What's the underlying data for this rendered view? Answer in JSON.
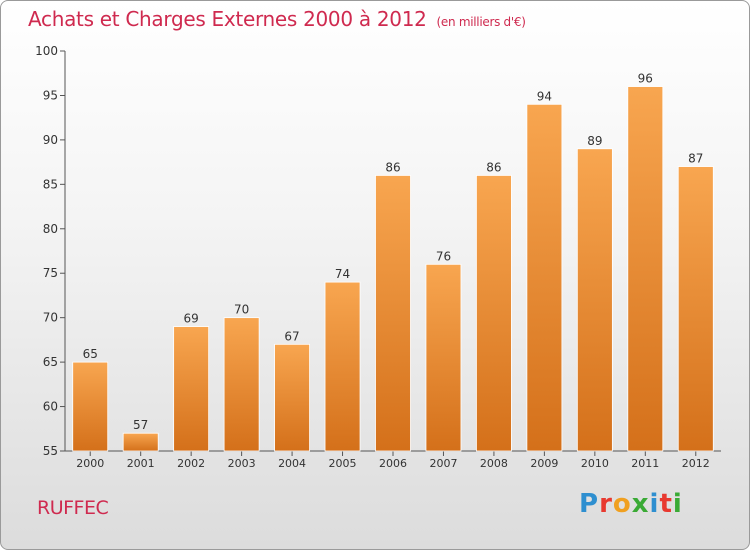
{
  "header": {
    "title": "Achats et Charges Externes 2000 à 2012",
    "unit": "(en milliers d'€)"
  },
  "footer": {
    "city": "RUFFEC",
    "logo": {
      "letters": [
        "P",
        "r",
        "o",
        "x",
        "i",
        "t",
        "i"
      ],
      "colors": [
        "#2e8fd0",
        "#e8392f",
        "#f0a020",
        "#3aaa35",
        "#2e8fd0",
        "#e8392f",
        "#3aaa35"
      ]
    }
  },
  "chart_data": {
    "type": "bar",
    "categories": [
      "2000",
      "2001",
      "2002",
      "2003",
      "2004",
      "2005",
      "2006",
      "2007",
      "2008",
      "2009",
      "2010",
      "2011",
      "2012"
    ],
    "values": [
      65,
      57,
      69,
      70,
      67,
      74,
      86,
      76,
      86,
      94,
      89,
      96,
      87
    ],
    "ylim": [
      55,
      100
    ],
    "yticks": [
      55,
      60,
      65,
      70,
      75,
      80,
      85,
      90,
      95,
      100
    ],
    "grid": false,
    "bar_color": "#f0963a"
  }
}
